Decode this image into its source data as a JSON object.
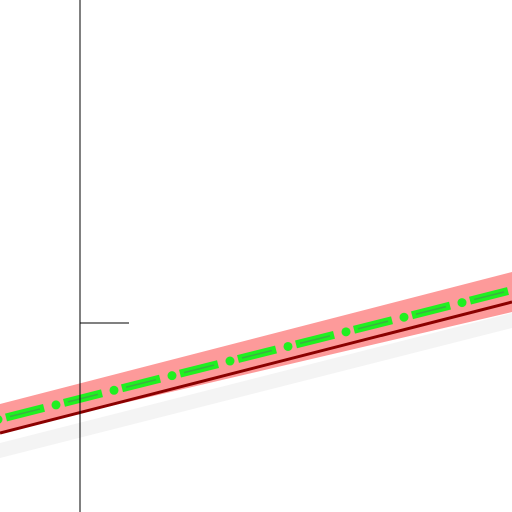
{
  "colors": {
    "background": "#ffffff",
    "axis": "#000000",
    "shadow": "#f4f4f4",
    "band": "#fd9a9a",
    "edge": "#8b0000",
    "dash": "#20f020",
    "dash_outline": "#3cb043"
  }
}
